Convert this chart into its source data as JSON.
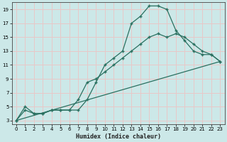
{
  "xlabel": "Humidex (Indice chaleur)",
  "bg_color": "#cce8e8",
  "grid_color": "#e8c8c8",
  "line_color": "#2a7060",
  "xlim": [
    -0.5,
    23.5
  ],
  "ylim": [
    2.5,
    20
  ],
  "xticks": [
    0,
    1,
    2,
    3,
    4,
    5,
    6,
    7,
    8,
    9,
    10,
    11,
    12,
    13,
    14,
    15,
    16,
    17,
    18,
    19,
    20,
    21,
    22,
    23
  ],
  "yticks": [
    3,
    5,
    7,
    9,
    11,
    13,
    15,
    17,
    19
  ],
  "line1_x": [
    0,
    1,
    2,
    3,
    4,
    5,
    6,
    7,
    8,
    9,
    10,
    11,
    12,
    13,
    14,
    15,
    16,
    17,
    18,
    19,
    20,
    21,
    22,
    23
  ],
  "line1_y": [
    3,
    5,
    4,
    4,
    4.5,
    4.5,
    4.5,
    4.5,
    6,
    8.5,
    11,
    12,
    13,
    17,
    18,
    19.5,
    19.5,
    19,
    16,
    14.5,
    13,
    12.5,
    12.5,
    11.5
  ],
  "line2_x": [
    0,
    1,
    2,
    3,
    4,
    5,
    6,
    7,
    8,
    9,
    10,
    11,
    12,
    13,
    14,
    15,
    16,
    17,
    18,
    19,
    20,
    21,
    22,
    23
  ],
  "line2_y": [
    3,
    4.5,
    4,
    4,
    4.5,
    4.5,
    4.5,
    6,
    8.5,
    9,
    10,
    11,
    12,
    13,
    14,
    15,
    15.5,
    15,
    15.5,
    15,
    14,
    13,
    12.5,
    11.5
  ],
  "line3_x": [
    0,
    23
  ],
  "line3_y": [
    3,
    11.5
  ]
}
